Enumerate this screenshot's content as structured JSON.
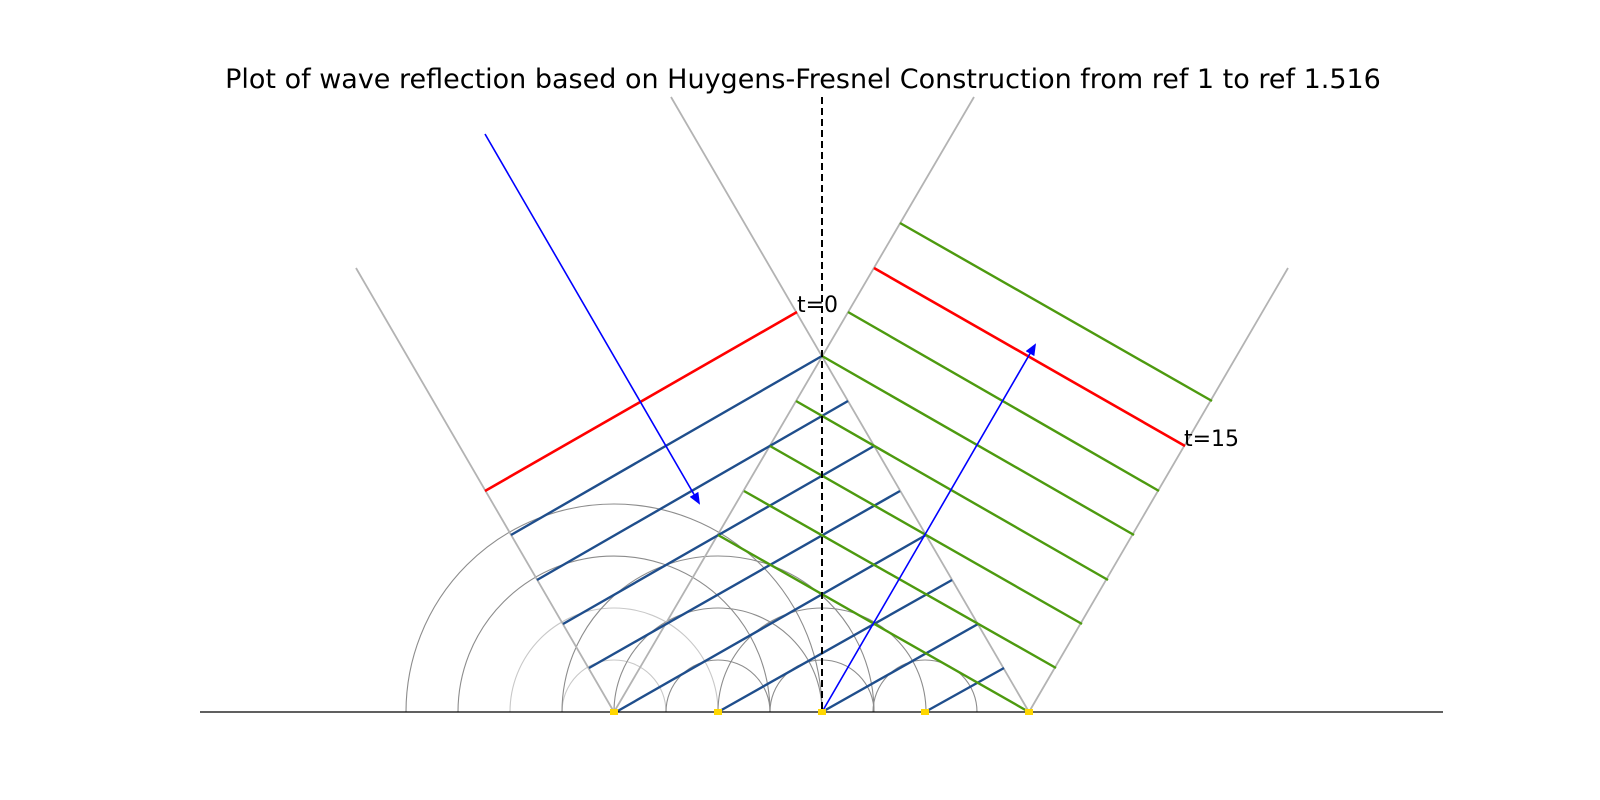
{
  "title": "Plot of wave reflection based on Huygens-Fresnel Construction from ref 1 to ref 1.516",
  "labels": {
    "start": "t=0",
    "end": "t=15"
  },
  "colors": {
    "incident_ray": "#0000ff",
    "incident_wavefront": "#1f4e8c",
    "reflected_wavefront": "#4d9a0f",
    "highlight_wavefront": "#ff0000",
    "boundary_guides": "#b3b3b3",
    "wavelets": "#8c8c8c",
    "emitters": "#ffd700",
    "normal": "#000000",
    "interface": "#000000"
  }
}
